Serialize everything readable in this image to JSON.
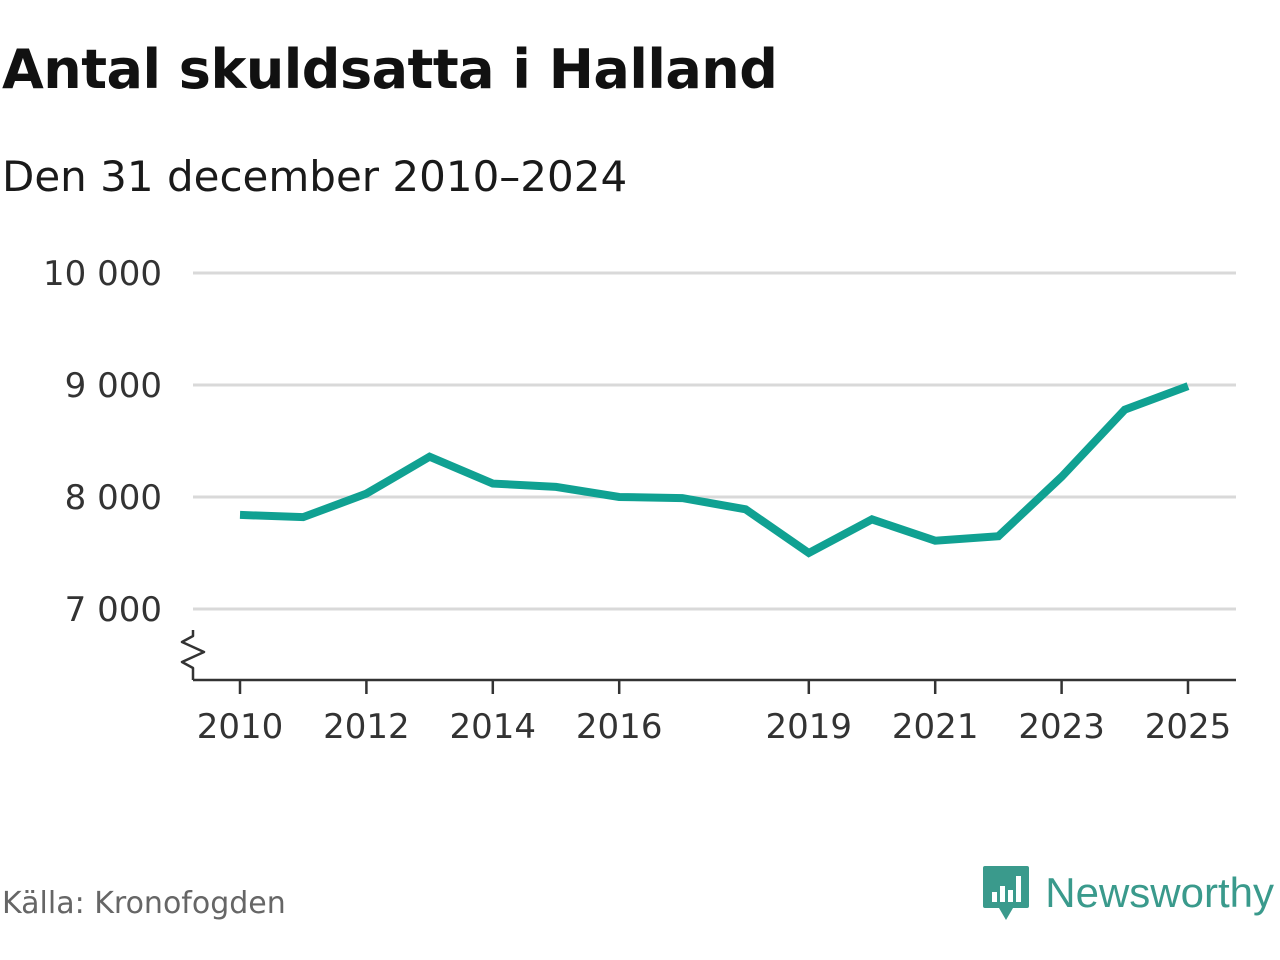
{
  "header": {
    "title": "Antal skuldsatta i Halland",
    "subtitle": "Den 31 december 2010–2024"
  },
  "footer": {
    "source": "Källa: Kronofogden",
    "brand": "Newsworthy",
    "brand_icon": "newsworthy-logo-icon"
  },
  "colors": {
    "line": "#10a192",
    "grid": "#d9d9d9",
    "axis": "#333333",
    "brand": "#3a9a8c"
  },
  "chart_data": {
    "type": "line",
    "title": "Antal skuldsatta i Halland",
    "subtitle": "Den 31 december 2010–2024",
    "xlabel": "",
    "ylabel": "",
    "xlim": [
      2009.75,
      2025.7
    ],
    "ylim": [
      6400,
      10000
    ],
    "grid": true,
    "axis_break": true,
    "yticks": [
      {
        "value": 7000,
        "label": "7 000"
      },
      {
        "value": 8000,
        "label": "8 000"
      },
      {
        "value": 9000,
        "label": "9 000"
      },
      {
        "value": 10000,
        "label": "10 000"
      }
    ],
    "xticks": [
      {
        "value": 2010,
        "label": "2010"
      },
      {
        "value": 2012,
        "label": "2012"
      },
      {
        "value": 2014,
        "label": "2014"
      },
      {
        "value": 2016,
        "label": "2016"
      },
      {
        "value": 2019,
        "label": "2019"
      },
      {
        "value": 2021,
        "label": "2021"
      },
      {
        "value": 2023,
        "label": "2023"
      },
      {
        "value": 2025,
        "label": "2025"
      }
    ],
    "series": [
      {
        "name": "Antal skuldsatta",
        "x": [
          2010,
          2011,
          2012,
          2013,
          2014,
          2015,
          2016,
          2017,
          2018,
          2019,
          2020,
          2021,
          2022,
          2023,
          2024,
          2025
        ],
        "values": [
          7840,
          7820,
          8030,
          8360,
          8120,
          8090,
          8000,
          7990,
          7890,
          7500,
          7800,
          7610,
          7650,
          8180,
          8780,
          8990
        ]
      }
    ]
  }
}
